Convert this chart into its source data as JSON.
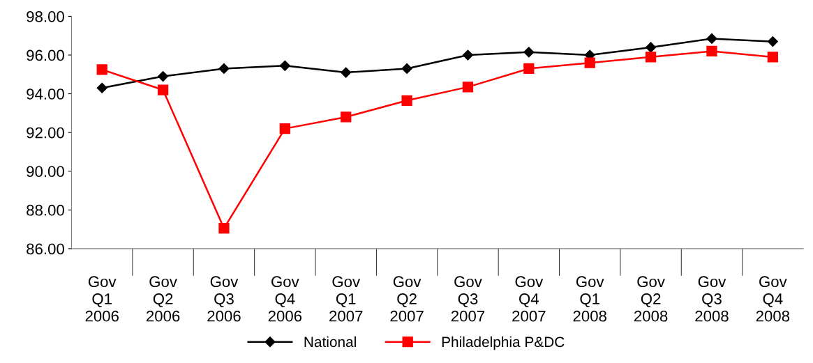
{
  "chart_data": {
    "type": "line",
    "categories": [
      "Gov\nQ1\n2006",
      "Gov\nQ2\n2006",
      "Gov\nQ3\n2006",
      "Gov\nQ4\n2006",
      "Gov\nQ1\n2007",
      "Gov\nQ2\n2007",
      "Gov\nQ3\n2007",
      "Gov\nQ4\n2007",
      "Gov\nQ1\n2008",
      "Gov\nQ2\n2008",
      "Gov\nQ3\n2008",
      "Gov\nQ4\n2008"
    ],
    "series": [
      {
        "name": "National",
        "color": "#000000",
        "marker": "diamond",
        "values": [
          94.3,
          94.9,
          95.3,
          95.45,
          95.1,
          95.3,
          96.0,
          96.15,
          96.0,
          96.4,
          96.85,
          96.7
        ]
      },
      {
        "name": "Philadelphia P&DC",
        "color": "#ff0000",
        "marker": "square",
        "values": [
          95.25,
          94.2,
          87.05,
          92.2,
          92.8,
          93.65,
          94.35,
          95.3,
          95.6,
          95.9,
          96.2,
          95.9
        ]
      }
    ],
    "ylim": [
      86,
      98
    ],
    "yticks": [
      {
        "value": 86,
        "label": "86.00"
      },
      {
        "value": 88,
        "label": "88.00"
      },
      {
        "value": 90,
        "label": "90.00"
      },
      {
        "value": 92,
        "label": "92.00"
      },
      {
        "value": 94,
        "label": "94.00"
      },
      {
        "value": 96,
        "label": "96.00"
      },
      {
        "value": 98,
        "label": "98.00"
      }
    ],
    "grid": false,
    "legend": "bottom",
    "line_style": "solid"
  }
}
